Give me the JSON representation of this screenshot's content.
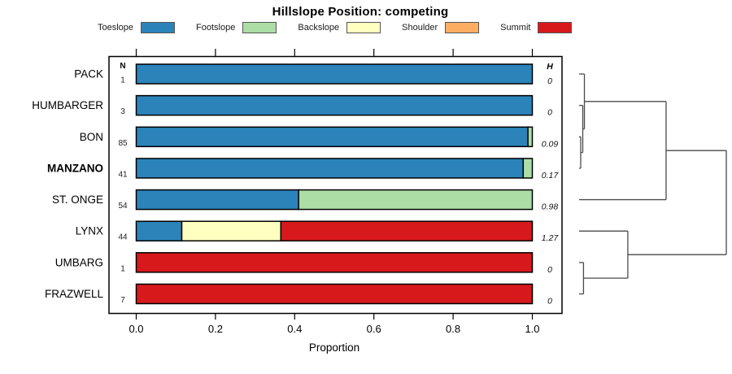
{
  "chart_data": {
    "type": "bar",
    "orientation": "horizontal-stacked",
    "title": "Hillslope Position: competing",
    "x_axis": {
      "label": "Proportion",
      "tick_values": [
        0.0,
        0.2,
        0.4,
        0.6,
        0.8,
        1.0
      ],
      "tick_labels": [
        "0.0",
        "0.2",
        "0.4",
        "0.6",
        "0.8",
        "1.0"
      ],
      "xlim": [
        0,
        1
      ],
      "ticks_on_top_and_bottom": true
    },
    "legend": [
      {
        "label": "Toeslope",
        "color": "#2B83BA"
      },
      {
        "label": "Footslope",
        "color": "#ABDDA4"
      },
      {
        "label": "Backslope",
        "color": "#FFFFBF"
      },
      {
        "label": "Shoulder",
        "color": "#FDAE61"
      },
      {
        "label": "Summit",
        "color": "#D7191C"
      }
    ],
    "columns": {
      "n_header": "N",
      "h_header": "H"
    },
    "rows": [
      {
        "name": "PACK",
        "bold": false,
        "n": "1",
        "h": "0",
        "segments": [
          {
            "category": "Toeslope",
            "value": 1.0
          }
        ]
      },
      {
        "name": "HUMBARGER",
        "bold": false,
        "n": "3",
        "h": "0",
        "segments": [
          {
            "category": "Toeslope",
            "value": 1.0
          }
        ]
      },
      {
        "name": "BON",
        "bold": false,
        "n": "85",
        "h": "0.09",
        "segments": [
          {
            "category": "Toeslope",
            "value": 0.989
          },
          {
            "category": "Footslope",
            "value": 0.011
          }
        ]
      },
      {
        "name": "MANZANO",
        "bold": true,
        "n": "41",
        "h": "0.17",
        "segments": [
          {
            "category": "Toeslope",
            "value": 0.977
          },
          {
            "category": "Footslope",
            "value": 0.023
          }
        ]
      },
      {
        "name": "ST. ONGE",
        "bold": false,
        "n": "54",
        "h": "0.98",
        "segments": [
          {
            "category": "Toeslope",
            "value": 0.41
          },
          {
            "category": "Footslope",
            "value": 0.59
          }
        ]
      },
      {
        "name": "LYNX",
        "bold": false,
        "n": "44",
        "h": "1.27",
        "segments": [
          {
            "category": "Toeslope",
            "value": 0.115
          },
          {
            "category": "Backslope",
            "value": 0.25
          },
          {
            "category": "Summit",
            "value": 0.635
          }
        ]
      },
      {
        "name": "UMBARG",
        "bold": false,
        "n": "1",
        "h": "0",
        "segments": [
          {
            "category": "Summit",
            "value": 1.0
          }
        ]
      },
      {
        "name": "FRAZWELL",
        "bold": false,
        "n": "7",
        "h": "0",
        "segments": [
          {
            "category": "Summit",
            "value": 1.0
          }
        ]
      }
    ],
    "dendrogram": {
      "side": "right",
      "merges": [
        {
          "id": "m1",
          "a": "BON",
          "b": "MANZANO",
          "x": 0.011
        },
        {
          "id": "m2",
          "a": "HUMBARGER",
          "b": "m1",
          "x": 0.025
        },
        {
          "id": "m3",
          "a": "PACK",
          "b": "m2",
          "x": 0.036
        },
        {
          "id": "m4",
          "a": "m3",
          "b": "ST. ONGE",
          "x": 0.591
        },
        {
          "id": "m5",
          "a": "UMBARG",
          "b": "FRAZWELL",
          "x": 0.03
        },
        {
          "id": "m6",
          "a": "LYNX",
          "b": "m5",
          "x": 0.331
        },
        {
          "id": "m7",
          "a": "m4",
          "b": "m6",
          "x": 1.0
        }
      ]
    }
  }
}
